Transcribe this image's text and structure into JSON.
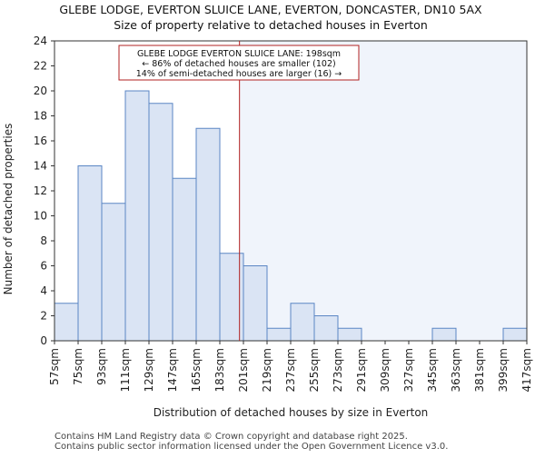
{
  "chart_data": {
    "type": "bar",
    "title_line1": "GLEBE LODGE, EVERTON SLUICE LANE, EVERTON, DONCASTER, DN10 5AX",
    "title_line2": "Size of property relative to detached houses in Everton",
    "xlabel": "Distribution of detached houses by size in Everton",
    "ylabel": "Number of detached properties",
    "bin_edges": [
      57,
      75,
      93,
      111,
      129,
      147,
      165,
      183,
      201,
      219,
      237,
      255,
      273,
      291,
      309,
      327,
      345,
      363,
      381,
      399,
      417
    ],
    "tick_labels": [
      "57sqm",
      "75sqm",
      "93sqm",
      "111sqm",
      "129sqm",
      "147sqm",
      "165sqm",
      "183sqm",
      "201sqm",
      "219sqm",
      "237sqm",
      "255sqm",
      "273sqm",
      "291sqm",
      "309sqm",
      "327sqm",
      "345sqm",
      "363sqm",
      "381sqm",
      "399sqm",
      "417sqm"
    ],
    "values": [
      3,
      14,
      11,
      20,
      19,
      13,
      17,
      7,
      6,
      1,
      3,
      2,
      1,
      0,
      0,
      0,
      1,
      0,
      0,
      1
    ],
    "ylim": [
      0,
      24
    ],
    "yticks": [
      0,
      2,
      4,
      6,
      8,
      10,
      12,
      14,
      16,
      18,
      20,
      22,
      24
    ],
    "marker_value": 198,
    "marker_color": "#b22222",
    "bar_fill": "#dae4f4",
    "bar_stroke": "#5b86c4",
    "shade_fill": "#f0f4fb",
    "annotation": {
      "line1": "GLEBE LODGE EVERTON SLUICE LANE: 198sqm",
      "line2": "← 86% of detached houses are smaller (102)",
      "line3": "14% of semi-detached houses are larger (16) →"
    }
  },
  "footer": {
    "line1": "Contains HM Land Registry data © Crown copyright and database right 2025.",
    "line2": "Contains public sector information licensed under the Open Government Licence v3.0."
  }
}
